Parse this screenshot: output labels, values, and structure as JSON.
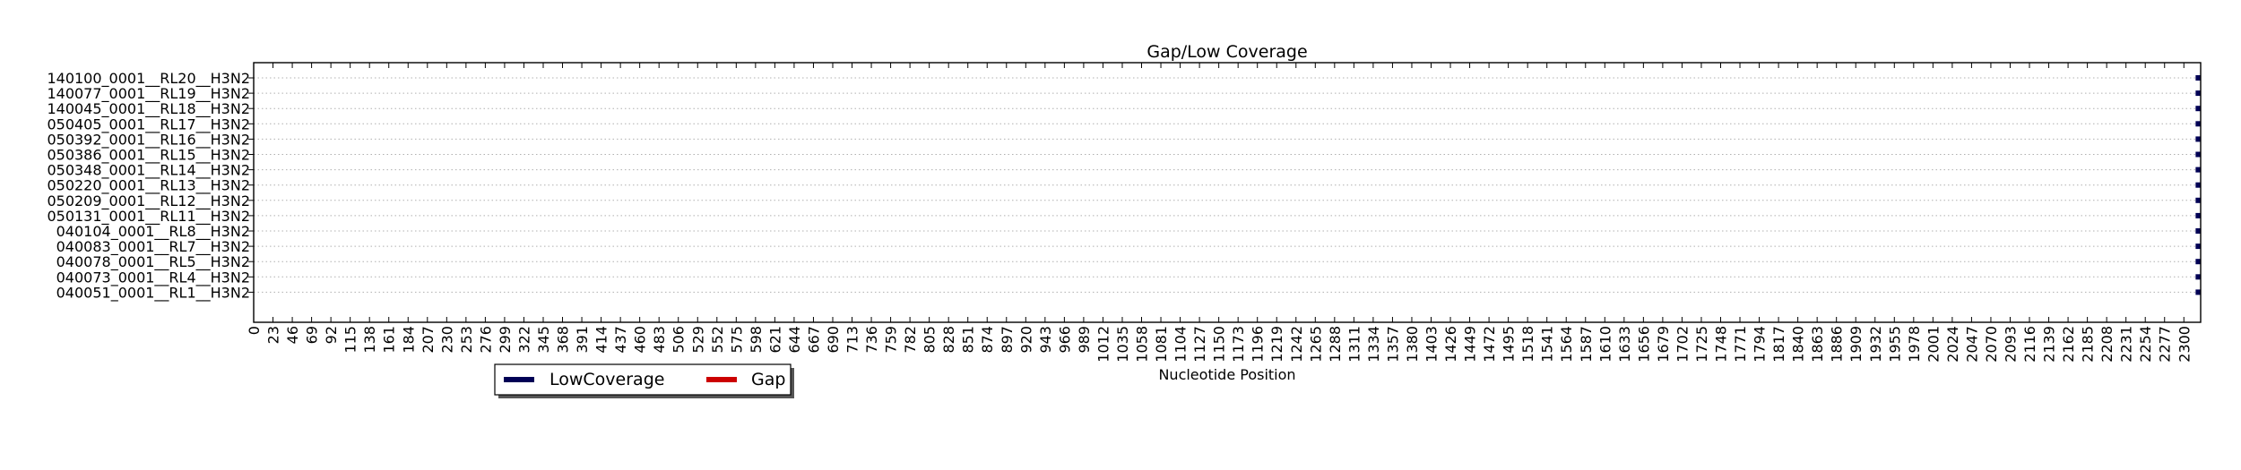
{
  "chart_data": {
    "type": "gantt",
    "title": "Gap/Low Coverage",
    "xlabel": "Nucleotide Position",
    "ylabel": "",
    "xlim": [
      0,
      2320
    ],
    "x_tick_step": 23,
    "x_tick_max": 2300,
    "grid": "horizontal-dotted",
    "legend_placement": "lower-left-outside",
    "samples": [
      "140100_0001__RL20__H3N2",
      "140077_0001__RL19__H3N2",
      "140045_0001__RL18__H3N2",
      "050405_0001__RL17__H3N2",
      "050392_0001__RL16__H3N2",
      "050386_0001__RL15__H3N2",
      "050348_0001__RL14__H3N2",
      "050220_0001__RL13__H3N2",
      "050209_0001__RL12__H3N2",
      "050131_0001__RL11__H3N2",
      "040104_0001__RL8__H3N2",
      "040083_0001__RL7__H3N2",
      "040078_0001__RL5__H3N2",
      "040073_0001__RL4__H3N2",
      "040051_0001__RL1__H3N2"
    ],
    "series": [
      {
        "name": "LowCoverage",
        "color": "#000055",
        "intervals": [
          {
            "sample": 0,
            "start": 2314,
            "end": 2320
          },
          {
            "sample": 1,
            "start": 2314,
            "end": 2320
          },
          {
            "sample": 2,
            "start": 2314,
            "end": 2320
          },
          {
            "sample": 3,
            "start": 2314,
            "end": 2320
          },
          {
            "sample": 4,
            "start": 2314,
            "end": 2320
          },
          {
            "sample": 5,
            "start": 2314,
            "end": 2320
          },
          {
            "sample": 6,
            "start": 2314,
            "end": 2320
          },
          {
            "sample": 7,
            "start": 2314,
            "end": 2320
          },
          {
            "sample": 8,
            "start": 2314,
            "end": 2320
          },
          {
            "sample": 9,
            "start": 2314,
            "end": 2320
          },
          {
            "sample": 10,
            "start": 2314,
            "end": 2320
          },
          {
            "sample": 11,
            "start": 2314,
            "end": 2320
          },
          {
            "sample": 12,
            "start": 2314,
            "end": 2320
          },
          {
            "sample": 13,
            "start": 2314,
            "end": 2320
          },
          {
            "sample": 14,
            "start": 2314,
            "end": 2320
          }
        ]
      },
      {
        "name": "Gap",
        "color": "#cc0000",
        "intervals": []
      }
    ]
  }
}
